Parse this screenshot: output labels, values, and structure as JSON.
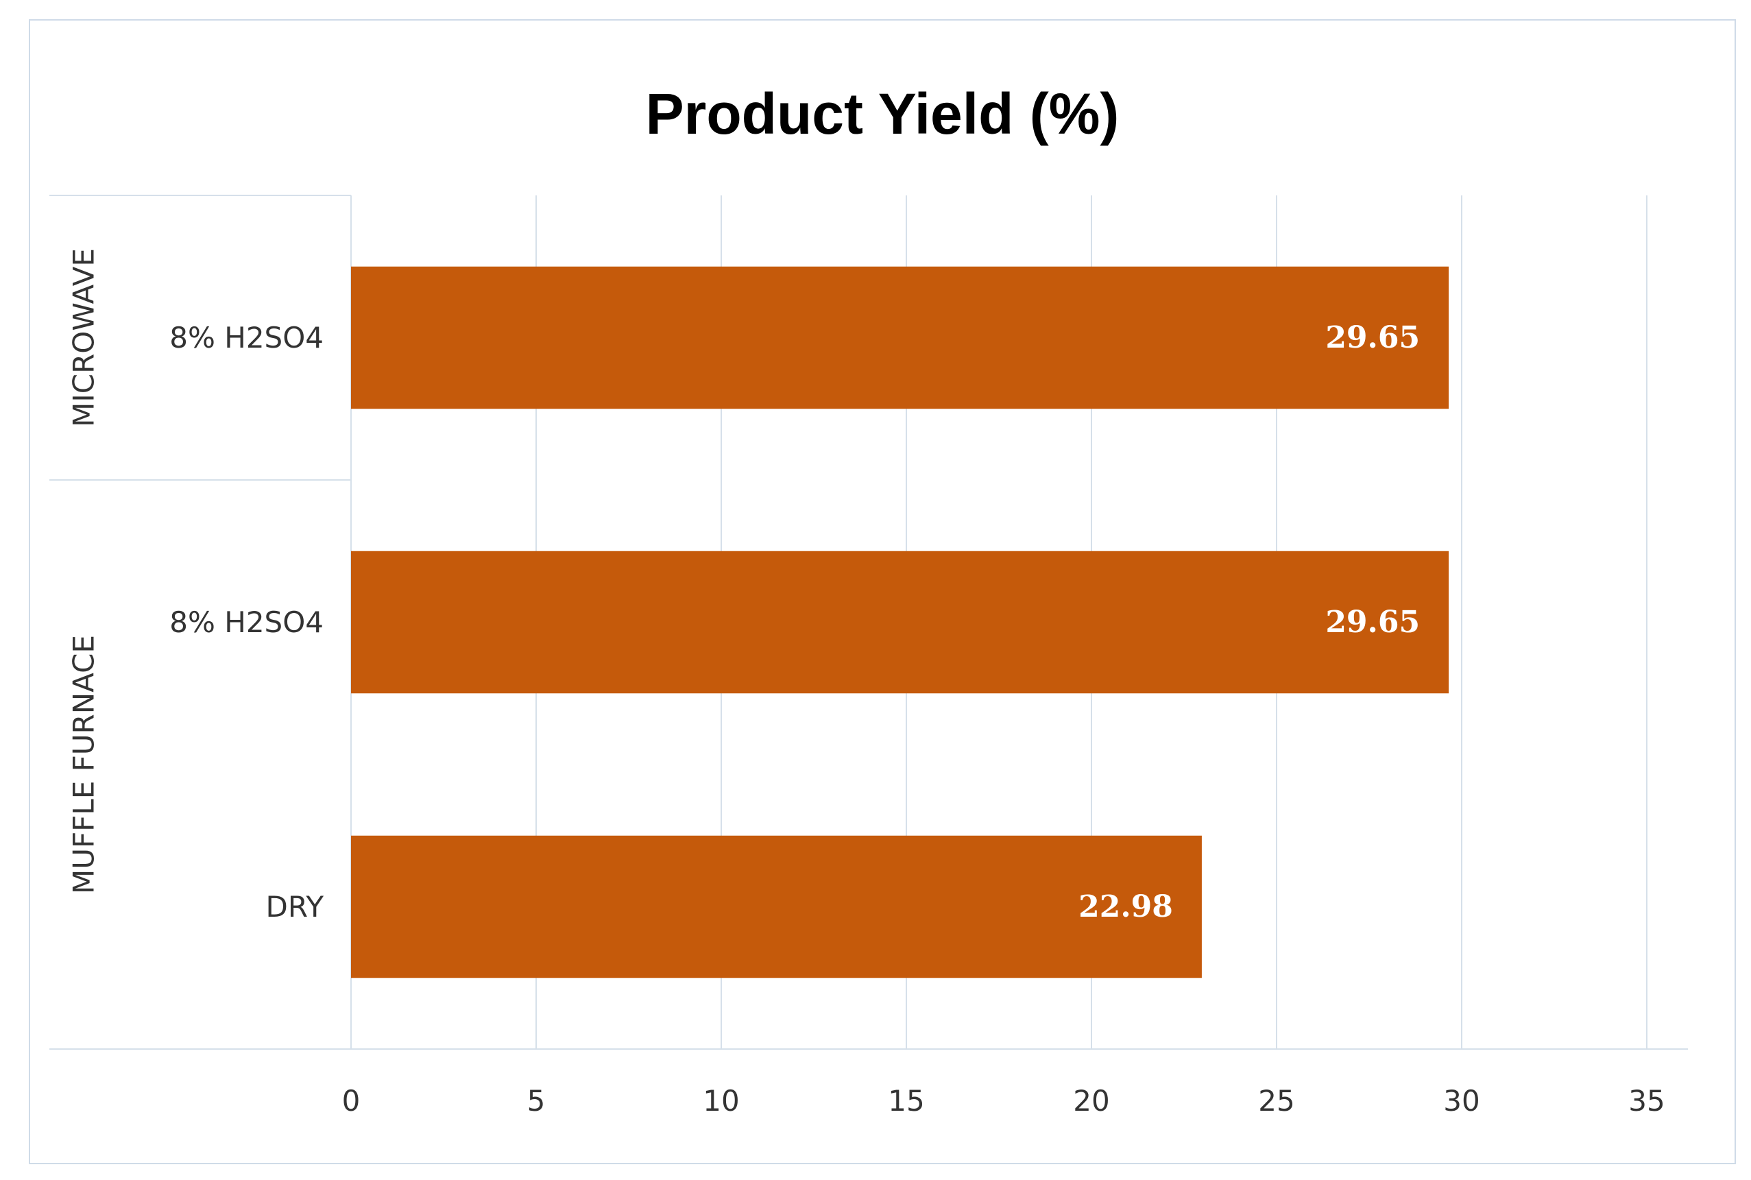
{
  "chart_data": {
    "type": "bar",
    "orientation": "horizontal",
    "title": "Product Yield (%)",
    "xlabel": "",
    "ylabel": "",
    "xlim": [
      0,
      35
    ],
    "xticks": [
      "0",
      "5",
      "10",
      "15",
      "20",
      "25",
      "30",
      "35"
    ],
    "grid": true,
    "legend": "none",
    "bar_color": "#c55a0b",
    "gridline_color": "#d6e0ea",
    "groups": [
      {
        "name": "MICROWAVE",
        "categories": [
          "8% H2SO4"
        ]
      },
      {
        "name": "MUFFLE FURNACE",
        "categories": [
          "8% H2SO4",
          "DRY"
        ]
      }
    ],
    "categories": [
      "8% H2SO4",
      "8% H2SO4",
      "DRY"
    ],
    "values": [
      29.65,
      29.65,
      22.98
    ],
    "data_labels": [
      "29.65",
      "29.65",
      "22.98"
    ]
  }
}
